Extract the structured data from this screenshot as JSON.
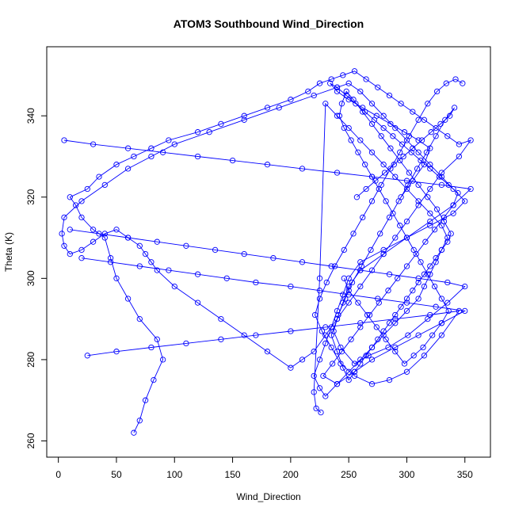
{
  "chart_data": {
    "type": "line",
    "title": "ATOM3 Southbound Wind_Direction",
    "xlabel": "Wind_Direction",
    "ylabel": "Theta (K)",
    "xlim": [
      -10,
      372
    ],
    "ylim": [
      256,
      357
    ],
    "x_ticks": [
      0,
      50,
      100,
      150,
      200,
      250,
      300,
      350
    ],
    "y_ticks": [
      260,
      280,
      300,
      320,
      340
    ],
    "grid": false,
    "legend": "none",
    "marker": "open-circle",
    "line_color": "#0000ff",
    "series": [
      {
        "x": [
          65,
          70,
          75,
          82,
          90,
          85,
          70,
          60,
          50,
          45,
          40,
          30,
          20,
          15,
          10,
          25,
          35,
          50,
          65,
          80,
          95,
          120,
          140,
          160,
          180,
          200,
          215,
          225,
          235,
          245,
          255,
          265,
          275,
          285,
          295,
          305,
          315,
          325,
          335,
          345,
          355,
          345,
          330,
          320,
          310,
          300,
          290,
          280,
          270,
          260,
          250,
          240,
          230,
          220,
          210,
          200,
          180,
          160,
          140,
          120,
          100,
          85,
          80,
          75,
          70,
          60,
          50,
          40,
          30,
          20,
          10,
          5,
          3,
          5,
          20,
          40,
          60,
          80,
          100,
          130,
          160,
          190,
          220,
          240,
          250,
          260,
          270,
          280,
          290,
          300,
          310,
          320,
          330,
          340,
          350,
          340,
          320,
          300,
          280,
          260,
          250,
          245,
          240,
          235,
          230,
          225,
          220,
          225,
          230,
          240,
          250,
          260,
          270,
          280,
          290,
          300,
          310,
          315,
          320,
          325,
          330,
          335,
          330,
          320,
          310,
          300,
          290,
          280,
          270,
          260,
          250,
          240,
          230,
          225,
          220,
          222,
          226
        ],
        "y": [
          262,
          265,
          270,
          275,
          280,
          285,
          290,
          295,
          300,
          305,
          310,
          312,
          315,
          318,
          320,
          322,
          325,
          328,
          330,
          332,
          334,
          336,
          338,
          340,
          342,
          344,
          346,
          348,
          349,
          350,
          351,
          349,
          347,
          345,
          343,
          341,
          339,
          337,
          335,
          333,
          334,
          330,
          326,
          322,
          318,
          314,
          310,
          306,
          302,
          298,
          294,
          290,
          286,
          282,
          280,
          278,
          282,
          286,
          290,
          294,
          298,
          302,
          304,
          306,
          308,
          310,
          312,
          311,
          309,
          307,
          306,
          308,
          311,
          315,
          319,
          323,
          327,
          330,
          333,
          336,
          339,
          342,
          345,
          347,
          348,
          346,
          343,
          340,
          337,
          334,
          331,
          328,
          325,
          322,
          319,
          316,
          313,
          310,
          307,
          304,
          300,
          296,
          292,
          288,
          284,
          280,
          276,
          273,
          271,
          274,
          277,
          280,
          283,
          286,
          289,
          292,
          295,
          298,
          301,
          304,
          307,
          310,
          313,
          316,
          319,
          322,
          325,
          328,
          331,
          334,
          337,
          340,
          343,
          300,
          272,
          268,
          267
        ]
      },
      {
        "x": [
          5,
          30,
          60,
          90,
          120,
          150,
          180,
          210,
          240,
          270,
          300,
          330,
          355,
          340,
          320,
          300,
          280,
          260,
          250,
          245,
          240,
          235,
          240,
          245,
          250,
          255,
          260,
          265,
          270,
          275,
          280,
          285,
          290,
          295,
          300,
          305,
          310,
          315,
          320,
          325,
          330,
          335,
          338,
          332,
          326,
          318,
          310,
          302,
          294,
          286,
          278,
          270,
          262,
          254,
          248,
          244,
          242,
          246,
          252,
          258,
          264,
          270,
          276,
          282,
          288,
          294,
          300,
          306,
          312,
          318,
          324,
          330,
          336,
          330,
          322,
          314,
          306,
          298,
          290,
          282,
          274,
          266,
          258,
          250,
          246
        ],
        "y": [
          334,
          333,
          332,
          331,
          330,
          329,
          328,
          327,
          326,
          325,
          324,
          323,
          322,
          318,
          314,
          310,
          306,
          302,
          298,
          294,
          290,
          286,
          282,
          278,
          275,
          277,
          279,
          281,
          283,
          285,
          287,
          289,
          291,
          293,
          295,
          297,
          299,
          301,
          303,
          305,
          307,
          309,
          311,
          314,
          317,
          320,
          323,
          326,
          329,
          332,
          335,
          338,
          341,
          344,
          346,
          343,
          340,
          337,
          334,
          331,
          328,
          325,
          322,
          319,
          316,
          313,
          310,
          307,
          304,
          301,
          298,
          295,
          292,
          289,
          286,
          283,
          281,
          279,
          282,
          285,
          288,
          291,
          294,
          297,
          300
        ]
      },
      {
        "x": [
          20,
          45,
          70,
          95,
          120,
          145,
          170,
          200,
          225,
          250,
          275,
          300,
          325,
          350,
          330,
          310,
          290,
          270,
          255,
          240,
          228,
          236,
          244,
          252,
          260,
          268,
          276,
          284,
          292,
          300,
          308,
          316,
          324,
          332,
          340,
          344,
          336,
          328,
          320,
          312,
          304,
          296,
          288,
          280,
          272,
          264,
          256,
          248,
          240,
          234,
          240,
          250,
          262,
          274,
          286,
          298,
          310,
          320,
          315,
          305,
          295
        ],
        "y": [
          305,
          304,
          303,
          302,
          301,
          300,
          299,
          298,
          297,
          296,
          295,
          294,
          293,
          292,
          289,
          286,
          283,
          280,
          277,
          274,
          276,
          279,
          282,
          285,
          288,
          291,
          294,
          297,
          300,
          303,
          306,
          309,
          312,
          315,
          318,
          321,
          323,
          325,
          327,
          329,
          331,
          333,
          335,
          337,
          339,
          341,
          343,
          345,
          347,
          348,
          346,
          344,
          342,
          340,
          338,
          336,
          334,
          332,
          328,
          324,
          320
        ]
      },
      {
        "x": [
          10,
          35,
          60,
          85,
          110,
          135,
          160,
          185,
          210,
          235,
          260,
          285,
          310,
          335,
          350,
          335,
          318,
          301,
          284,
          267,
          255,
          243,
          237,
          241,
          247,
          253,
          261,
          269,
          277,
          285,
          293,
          301,
          309,
          317,
          325,
          333,
          341,
          337,
          329,
          321,
          313,
          305,
          297,
          289,
          281,
          273,
          265,
          257
        ],
        "y": [
          312,
          311,
          310,
          309,
          308,
          307,
          306,
          305,
          304,
          303,
          302,
          301,
          300,
          299,
          298,
          294,
          290,
          286,
          283,
          281,
          279,
          283,
          287,
          291,
          295,
          299,
          303,
          307,
          311,
          315,
          319,
          323,
          327,
          331,
          335,
          339,
          342,
          340,
          338,
          336,
          334,
          332,
          330,
          328,
          326,
          324,
          322,
          320
        ]
      },
      {
        "x": [
          25,
          50,
          80,
          110,
          140,
          170,
          200,
          230,
          260,
          290,
          320,
          345,
          330,
          315,
          300,
          285,
          270,
          255,
          243,
          235,
          227,
          221,
          225,
          231,
          238,
          246,
          254,
          262,
          270,
          278,
          286,
          294,
          302,
          310,
          318,
          326,
          334,
          342,
          348
        ],
        "y": [
          281,
          282,
          283,
          284,
          285,
          286,
          287,
          288,
          289,
          290,
          291,
          292,
          286,
          281,
          277,
          275,
          274,
          276,
          279,
          283,
          287,
          291,
          295,
          299,
          303,
          307,
          311,
          315,
          319,
          323,
          327,
          331,
          335,
          339,
          343,
          346,
          348,
          349,
          348
        ]
      }
    ]
  }
}
